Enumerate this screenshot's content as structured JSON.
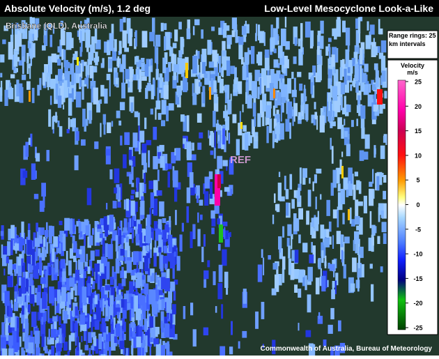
{
  "header": {
    "title_left": "Absolute Velocity (m/s), 1.2 deg",
    "title_right": "Low-Level Mesocyclone Look-a-Like"
  },
  "location": "Brisbane (QLD), Australia",
  "range_rings": "Range rings: 25 km intervals",
  "legend": {
    "title": "Velocity",
    "unit": "m/s",
    "ticks": [
      25,
      20,
      15,
      10,
      5,
      0,
      -5,
      -10,
      -15,
      -20,
      -25
    ]
  },
  "marker": "REF",
  "credit": "Commonwealth of Australia, Bureau of Meteorology"
}
